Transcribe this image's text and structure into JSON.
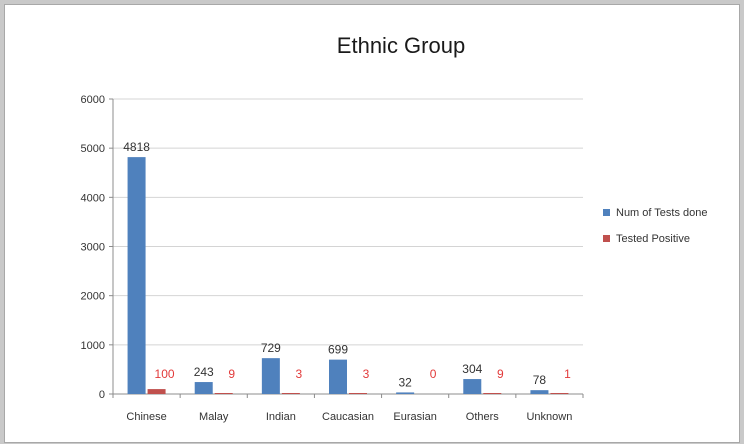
{
  "chart_data": {
    "type": "bar",
    "title": "Ethnic Group",
    "categories": [
      "Chinese",
      "Malay",
      "Indian",
      "Caucasian",
      "Eurasian",
      "Others",
      "Unknown"
    ],
    "series": [
      {
        "name": "Num of Tests done",
        "color": "#4f81bd",
        "label_color": "#333333",
        "values": [
          4818,
          243,
          729,
          699,
          32,
          304,
          78
        ]
      },
      {
        "name": "Tested Positive",
        "color": "#c0504d",
        "label_color": "#e23a3a",
        "values": [
          100,
          9,
          3,
          3,
          0,
          9,
          1
        ]
      }
    ],
    "ylim": [
      0,
      6000
    ],
    "yticks": [
      0,
      1000,
      2000,
      3000,
      4000,
      5000,
      6000
    ],
    "grid": true,
    "legend_position": "right"
  }
}
